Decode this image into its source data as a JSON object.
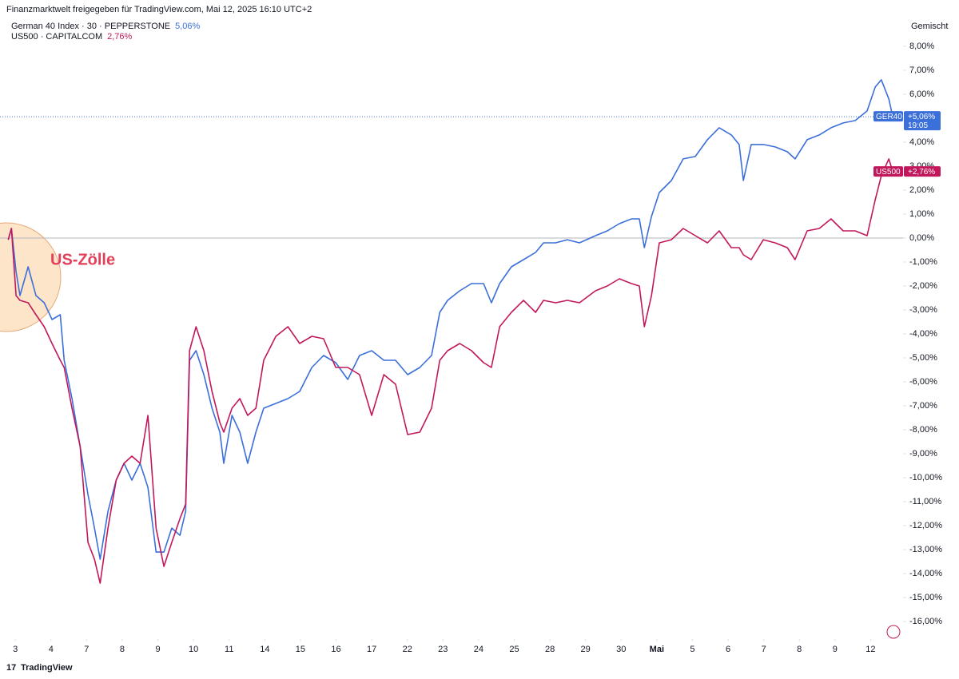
{
  "chart_data": {
    "type": "line",
    "title": "Finanzmarktwelt freigegeben für TradingView.com, Mai 12, 2025 16:10 UTC+2",
    "scale_mode": "Gemischt",
    "watermark": "TradingView",
    "annotation": "US-Zölle",
    "baseline": 0,
    "grid": false,
    "xlim": [
      -0.43,
      24.91
    ],
    "ylim": [
      -16.73,
      8.93
    ],
    "xticks": [
      {
        "value": 0,
        "label": "3"
      },
      {
        "value": 1,
        "label": "4"
      },
      {
        "value": 2,
        "label": "7"
      },
      {
        "value": 3,
        "label": "8"
      },
      {
        "value": 4,
        "label": "9"
      },
      {
        "value": 5,
        "label": "10"
      },
      {
        "value": 6,
        "label": "11"
      },
      {
        "value": 7,
        "label": "14"
      },
      {
        "value": 8,
        "label": "15"
      },
      {
        "value": 9,
        "label": "16"
      },
      {
        "value": 10,
        "label": "17"
      },
      {
        "value": 11,
        "label": "22"
      },
      {
        "value": 12,
        "label": "23"
      },
      {
        "value": 13,
        "label": "24"
      },
      {
        "value": 14,
        "label": "25"
      },
      {
        "value": 15,
        "label": "28"
      },
      {
        "value": 16,
        "label": "29"
      },
      {
        "value": 17,
        "label": "30"
      },
      {
        "value": 18,
        "label": "Mai"
      },
      {
        "value": 19,
        "label": "5"
      },
      {
        "value": 20,
        "label": "6"
      },
      {
        "value": 21,
        "label": "7"
      },
      {
        "value": 22,
        "label": "8"
      },
      {
        "value": 23,
        "label": "9"
      },
      {
        "value": 24,
        "label": "12"
      }
    ],
    "yticks": [
      {
        "value": 8,
        "label": "8,00%"
      },
      {
        "value": 7,
        "label": "7,00%"
      },
      {
        "value": 6,
        "label": "6,00%"
      },
      {
        "value": 5,
        "label": "5,00%"
      },
      {
        "value": 4,
        "label": "4,00%"
      },
      {
        "value": 3,
        "label": "3,00%"
      },
      {
        "value": 2,
        "label": "2,00%"
      },
      {
        "value": 1,
        "label": "1,00%"
      },
      {
        "value": 0,
        "label": "0,00%"
      },
      {
        "value": -1,
        "label": "-1,00%"
      },
      {
        "value": -2,
        "label": "-2,00%"
      },
      {
        "value": -3,
        "label": "-3,00%"
      },
      {
        "value": -4,
        "label": "-4,00%"
      },
      {
        "value": -5,
        "label": "-5,00%"
      },
      {
        "value": -6,
        "label": "-6,00%"
      },
      {
        "value": -7,
        "label": "-7,00%"
      },
      {
        "value": -8,
        "label": "-8,00%"
      },
      {
        "value": -9,
        "label": "-9,00%"
      },
      {
        "value": -10,
        "label": "-10,00%"
      },
      {
        "value": -11,
        "label": "-11,00%"
      },
      {
        "value": -12,
        "label": "-12,00%"
      },
      {
        "value": -13,
        "label": "-13,00%"
      },
      {
        "value": -14,
        "label": "-14,00%"
      },
      {
        "value": -15,
        "label": "-15,00%"
      },
      {
        "value": -16,
        "label": "-16,00%"
      }
    ],
    "x": [
      -0.2,
      -0.11,
      0.02,
      0.13,
      0.36,
      0.58,
      0.81,
      1.03,
      1.26,
      1.37,
      1.59,
      1.82,
      2.04,
      2.22,
      2.38,
      2.6,
      2.83,
      3.05,
      3.27,
      3.5,
      3.72,
      3.95,
      4.17,
      4.39,
      4.62,
      4.78,
      4.89,
      5.07,
      5.29,
      5.52,
      5.74,
      5.85,
      6.08,
      6.3,
      6.52,
      6.75,
      6.97,
      7.31,
      7.65,
      7.98,
      8.32,
      8.65,
      8.99,
      9.33,
      9.66,
      10.0,
      10.34,
      10.67,
      11.01,
      11.35,
      11.68,
      11.91,
      12.13,
      12.47,
      12.8,
      13.14,
      13.36,
      13.59,
      13.92,
      14.26,
      14.6,
      14.82,
      15.16,
      15.49,
      15.83,
      16.28,
      16.61,
      16.95,
      17.29,
      17.51,
      17.65,
      17.85,
      18.07,
      18.41,
      18.74,
      19.08,
      19.42,
      19.75,
      20.09,
      20.31,
      20.43,
      20.65,
      20.99,
      21.32,
      21.66,
      21.88,
      22.22,
      22.56,
      22.89,
      23.23,
      23.57,
      23.9,
      24.13,
      24.3,
      24.51,
      24.62
    ],
    "series": [
      {
        "name": "German 40 Index · 30 · PEPPERSTONE",
        "short_name": "GER40",
        "legend_value": "5,06%",
        "last_label": "+5,06%",
        "countdown": "19:05",
        "color": "#3b6fd9",
        "values": [
          -0.07,
          0.4,
          -1.4,
          -2.4,
          -1.2,
          -2.4,
          -2.7,
          -3.4,
          -3.2,
          -5.1,
          -6.7,
          -8.7,
          -10.7,
          -12.1,
          -13.4,
          -11.4,
          -10.1,
          -9.4,
          -10.1,
          -9.4,
          -10.4,
          -13.1,
          -13.1,
          -12.1,
          -12.4,
          -11.4,
          -5.1,
          -4.7,
          -5.7,
          -7.1,
          -8.1,
          -9.4,
          -7.4,
          -8.1,
          -9.4,
          -8.1,
          -7.1,
          -6.9,
          -6.7,
          -6.4,
          -5.4,
          -4.9,
          -5.2,
          -5.9,
          -4.9,
          -4.7,
          -5.1,
          -5.1,
          -5.7,
          -5.4,
          -4.9,
          -3.1,
          -2.6,
          -2.2,
          -1.9,
          -1.9,
          -2.7,
          -1.9,
          -1.2,
          -0.9,
          -0.6,
          -0.2,
          -0.2,
          -0.07,
          -0.2,
          0.1,
          0.3,
          0.6,
          0.8,
          0.8,
          -0.4,
          0.9,
          1.9,
          2.4,
          3.3,
          3.4,
          4.1,
          4.6,
          4.3,
          3.9,
          2.4,
          3.9,
          3.9,
          3.8,
          3.6,
          3.3,
          4.1,
          4.3,
          4.6,
          4.8,
          4.9,
          5.3,
          6.3,
          6.6,
          5.8,
          5.06
        ]
      },
      {
        "name": "US500 · CAPITALCOM",
        "short_name": "US500",
        "legend_value": "2,76%",
        "last_label": "+2,76%",
        "color": "#c2185b",
        "values": [
          -0.07,
          0.4,
          -2.4,
          -2.6,
          -2.7,
          -3.2,
          -3.7,
          -4.4,
          -5.1,
          -5.4,
          -7.1,
          -8.7,
          -12.7,
          -13.4,
          -14.4,
          -12.1,
          -10.1,
          -9.4,
          -9.1,
          -9.4,
          -7.4,
          -12.1,
          -13.7,
          -12.7,
          -11.7,
          -11.1,
          -4.7,
          -3.7,
          -4.7,
          -6.4,
          -7.7,
          -8.1,
          -7.1,
          -6.7,
          -7.4,
          -7.1,
          -5.1,
          -4.1,
          -3.7,
          -4.4,
          -4.1,
          -4.2,
          -5.4,
          -5.4,
          -5.7,
          -7.4,
          -5.7,
          -6.1,
          -8.2,
          -8.1,
          -7.1,
          -5.1,
          -4.7,
          -4.4,
          -4.7,
          -5.2,
          -5.4,
          -3.7,
          -3.1,
          -2.6,
          -3.1,
          -2.6,
          -2.7,
          -2.6,
          -2.7,
          -2.2,
          -2.0,
          -1.7,
          -1.9,
          -2.0,
          -3.7,
          -2.4,
          -0.2,
          -0.07,
          0.4,
          0.1,
          -0.2,
          0.3,
          -0.4,
          -0.4,
          -0.7,
          -0.9,
          -0.07,
          -0.2,
          -0.4,
          -0.9,
          0.3,
          0.4,
          0.8,
          0.3,
          0.3,
          0.1,
          1.6,
          2.6,
          3.3,
          2.76
        ]
      }
    ]
  }
}
